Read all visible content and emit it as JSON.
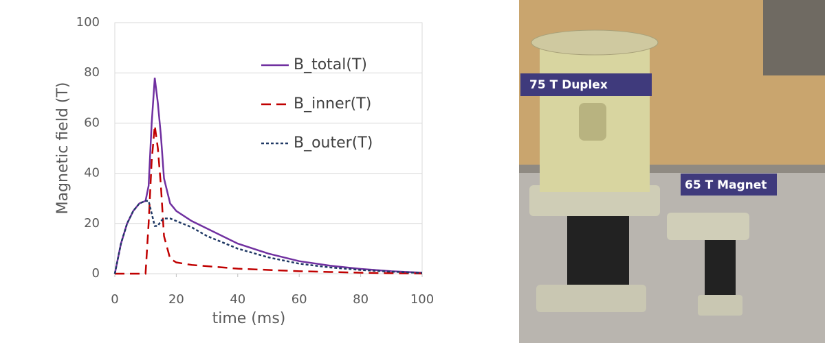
{
  "chart_data": {
    "type": "line",
    "x_label": "time (ms)",
    "y_label": "Magnetic field (T)",
    "x": [
      0,
      2,
      4,
      6,
      8,
      10,
      11,
      12,
      13,
      14,
      15,
      16,
      18,
      20,
      25,
      30,
      40,
      50,
      60,
      70,
      80,
      90,
      100
    ],
    "series": [
      {
        "name": "B_total(T)",
        "color": "#7030a0",
        "dash": "solid",
        "values": [
          0,
          12,
          20,
          25,
          28,
          29,
          35,
          60,
          78,
          68,
          55,
          38,
          28,
          25,
          21,
          18,
          12,
          8,
          5,
          3.2,
          1.9,
          1,
          0.4
        ]
      },
      {
        "name": "B_inner(T)",
        "color": "#c00000",
        "dash": "dashed",
        "values": [
          0,
          0,
          0,
          0,
          0,
          0,
          20,
          45,
          59,
          50,
          35,
          15,
          6,
          4.5,
          3.5,
          3,
          2,
          1.5,
          1,
          0.7,
          0.4,
          0.2,
          0.1
        ]
      },
      {
        "name": "B_outer(T)",
        "color": "#1f3864",
        "dash": "dotted",
        "values": [
          0,
          12,
          20,
          25,
          28,
          29,
          29,
          24,
          19,
          19,
          21,
          22,
          22,
          21,
          18.5,
          15,
          10,
          6.5,
          4,
          2.5,
          1.5,
          0.8,
          0.3
        ]
      }
    ],
    "xlim": [
      0,
      100
    ],
    "xticks": [
      0,
      20,
      40,
      60,
      80,
      100
    ],
    "ylim": [
      0,
      100
    ],
    "yticks": [
      0,
      20,
      40,
      60,
      80,
      100
    ],
    "grid": true
  },
  "photo": {
    "labels": [
      "75 T Duplex",
      "65 T Magnet"
    ]
  }
}
